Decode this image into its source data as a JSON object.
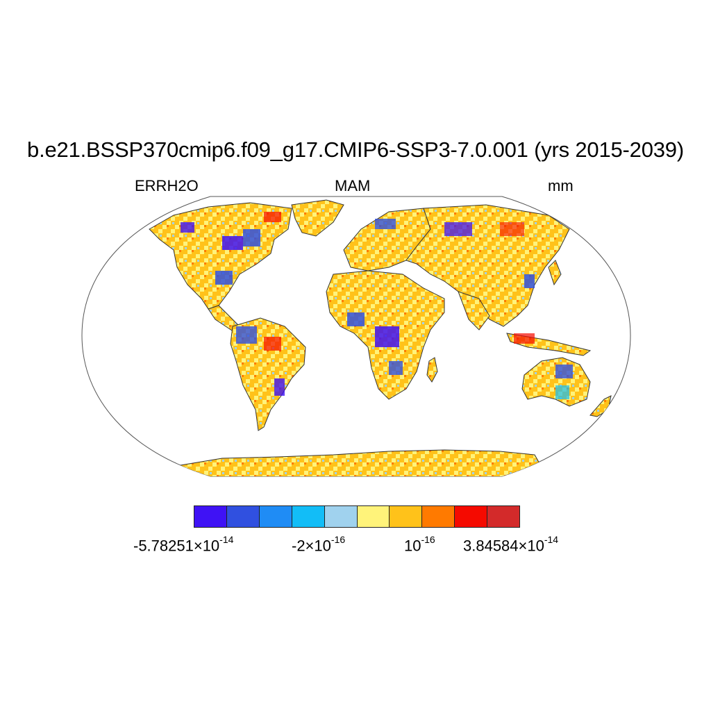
{
  "title": "b.e21.BSSP370cmip6.f09_g17.CMIP6-SSP3-7.0.001 (yrs 2015-2039)",
  "left_label": "ERRH2O",
  "center_label": "MAM",
  "right_label": "mm",
  "map": {
    "projection": "Robinson",
    "field": "ERRH2O",
    "season": "MAM",
    "land_only": true,
    "dominant_color": "#ffc21a",
    "continents": [
      "North America",
      "South America",
      "Europe",
      "Africa",
      "Asia",
      "Australia",
      "Antarctica",
      "Greenland"
    ]
  },
  "colorbar": {
    "colors": [
      "#3f12f5",
      "#3050e0",
      "#1f8cf5",
      "#12bdf7",
      "#a0d2ee",
      "#fff37a",
      "#ffc21a",
      "#ff7a00",
      "#f50a00",
      "#d32a2a"
    ],
    "labels": [
      {
        "mantissa": "-5.78251×10",
        "exponent": "-14"
      },
      {
        "mantissa": "-2×10",
        "exponent": "-16"
      },
      {
        "mantissa": "10",
        "exponent": "-16"
      },
      {
        "mantissa": "3.84584×10",
        "exponent": "-14"
      }
    ]
  }
}
